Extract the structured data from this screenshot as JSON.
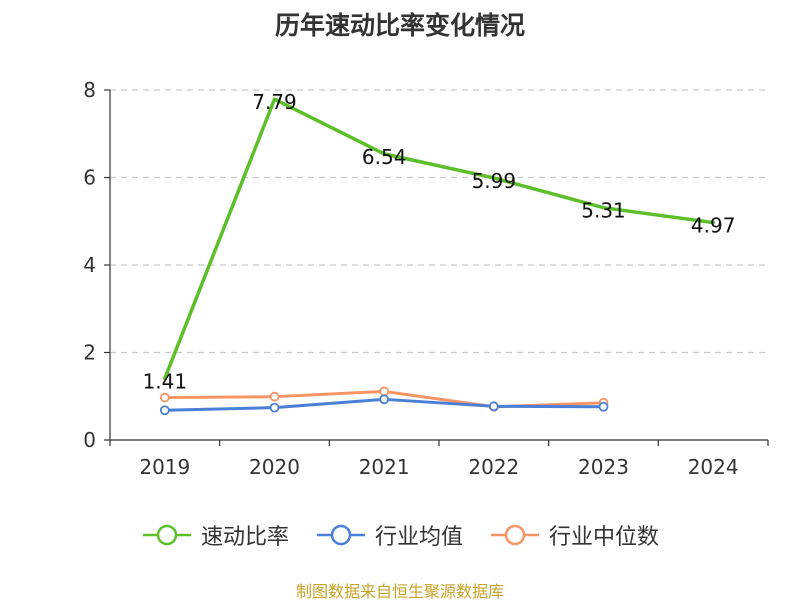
{
  "title": "历年速动比率变化情况",
  "source": "制图数据来自恒生聚源数据库",
  "chart_data": {
    "type": "line",
    "categories": [
      "2019",
      "2020",
      "2021",
      "2022",
      "2023",
      "2024"
    ],
    "ylim": [
      0,
      8
    ],
    "yticks": [
      0,
      2,
      4,
      6,
      8
    ],
    "grid": true,
    "legend_position": "bottom",
    "series": [
      {
        "name": "速动比率",
        "color": "#5cbf2a",
        "values": [
          1.41,
          7.79,
          6.54,
          5.99,
          5.31,
          4.97
        ],
        "labels": [
          "1.41",
          "7.79",
          "6.54",
          "5.99",
          "5.31",
          "4.97"
        ]
      },
      {
        "name": "行业均值",
        "color": "#4a7fd8",
        "values": [
          0.68,
          0.74,
          0.93,
          0.77,
          0.76,
          null
        ]
      },
      {
        "name": "行业中位数",
        "color": "#f79465",
        "values": [
          0.97,
          0.99,
          1.11,
          0.76,
          0.85,
          null
        ]
      }
    ]
  }
}
